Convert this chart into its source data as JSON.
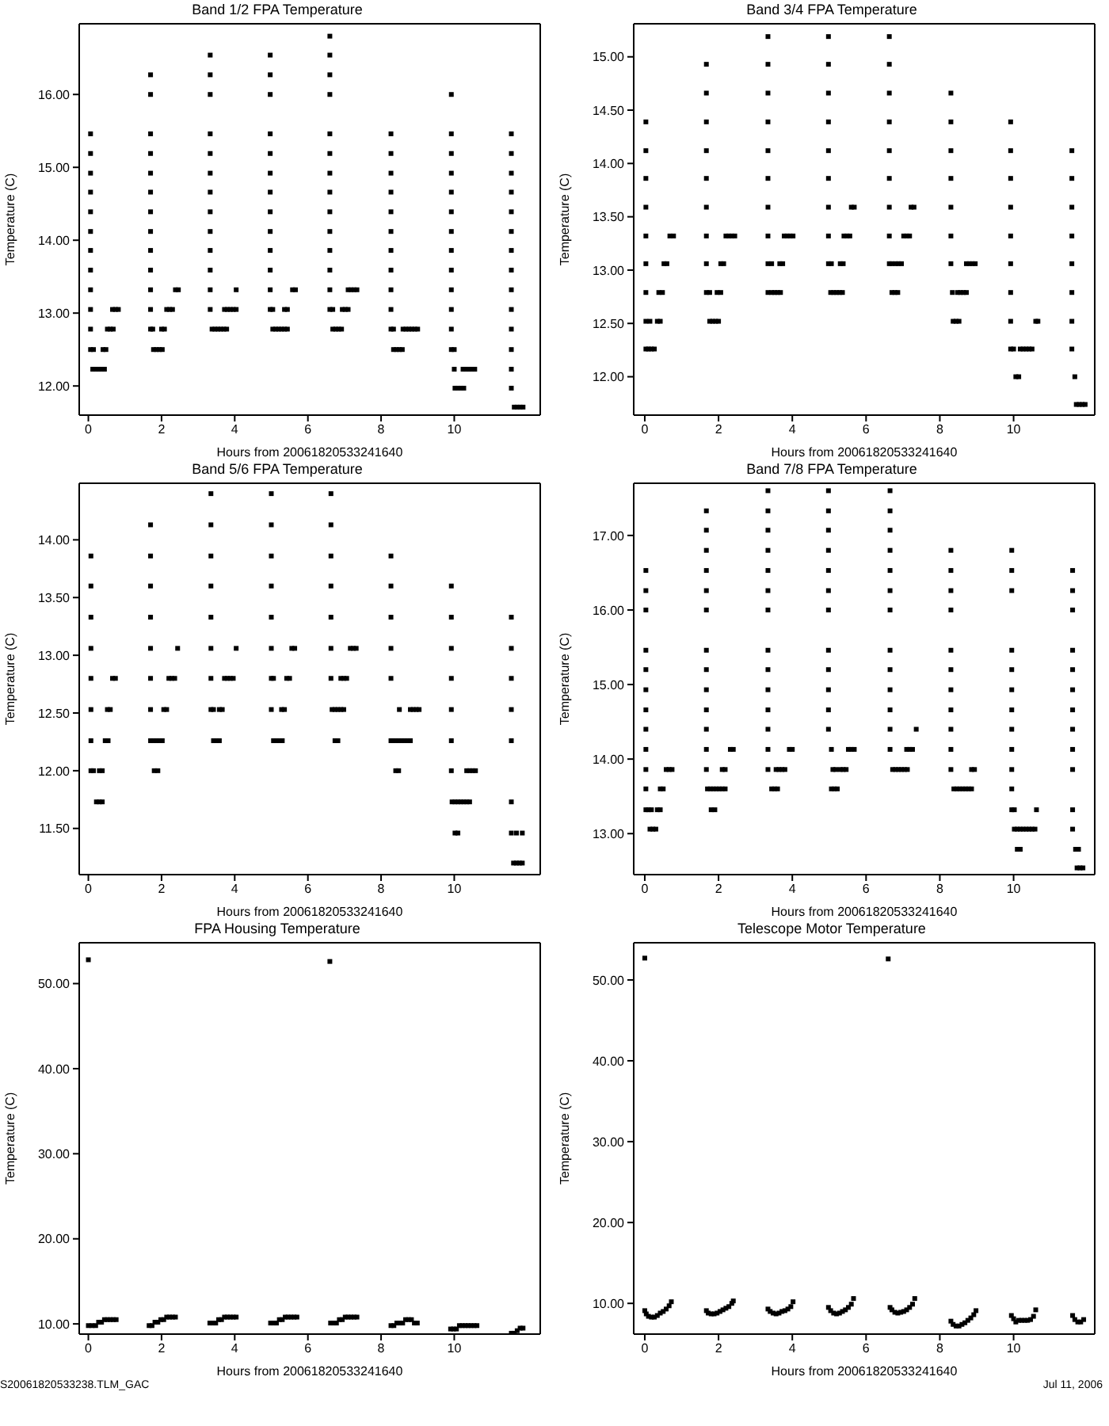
{
  "chart_data": [
    {
      "type": "scatter",
      "title": "Band 1/2 FPA Temperature",
      "xlabel": "Hours from 20061820533241640",
      "ylabel": "Temperature (C)",
      "color": "#000000",
      "marker": "square",
      "xlim": [
        -0.25,
        12.35
      ],
      "xticks": [
        0,
        2,
        4,
        6,
        8,
        10
      ],
      "ylim": [
        11.6,
        16.97
      ],
      "yticks": [
        {
          "value": 12,
          "label": "12.00"
        },
        {
          "value": 13,
          "label": "13.00"
        },
        {
          "value": 14,
          "label": "14.00"
        },
        {
          "value": 15,
          "label": "15.00"
        },
        {
          "value": 16,
          "label": "16.00"
        }
      ],
      "x": [
        0.06,
        0.06,
        0.06,
        0.06,
        0.06,
        0.06,
        0.06,
        0.06,
        0.06,
        0.06,
        0.06,
        0.06,
        0.14,
        0.12,
        0.2,
        0.28,
        0.36,
        0.44,
        0.4,
        0.48,
        0.52,
        0.6,
        0.68,
        0.66,
        0.74,
        0.82,
        1.7,
        1.7,
        1.7,
        1.7,
        1.7,
        1.7,
        1.7,
        1.7,
        1.7,
        1.7,
        1.7,
        1.7,
        1.7,
        1.76,
        1.78,
        1.86,
        1.94,
        2.02,
        2.0,
        2.08,
        2.14,
        2.22,
        2.3,
        2.38,
        2.46,
        3.33,
        3.33,
        3.33,
        3.33,
        3.33,
        3.33,
        3.33,
        3.33,
        3.33,
        3.33,
        3.33,
        3.33,
        3.33,
        3.38,
        3.46,
        3.54,
        3.62,
        3.7,
        3.78,
        3.72,
        3.8,
        3.88,
        3.96,
        4.04,
        4.04,
        4.97,
        4.97,
        4.97,
        4.97,
        4.97,
        4.97,
        4.97,
        4.97,
        4.97,
        4.97,
        4.97,
        4.97,
        4.97,
        5.04,
        5.12,
        5.2,
        5.28,
        5.36,
        5.44,
        5.04,
        5.36,
        5.44,
        5.58,
        5.66,
        6.6,
        6.6,
        6.6,
        6.6,
        6.6,
        6.6,
        6.6,
        6.6,
        6.6,
        6.6,
        6.6,
        6.6,
        6.6,
        6.6,
        6.68,
        6.76,
        6.84,
        6.92,
        6.68,
        6.94,
        7.02,
        7.1,
        7.1,
        7.18,
        7.26,
        7.34,
        8.27,
        8.27,
        8.27,
        8.27,
        8.27,
        8.27,
        8.27,
        8.27,
        8.27,
        8.27,
        8.27,
        8.34,
        8.42,
        8.5,
        8.58,
        8.34,
        8.6,
        8.68,
        8.76,
        8.84,
        8.92,
        9.0,
        9.92,
        9.92,
        9.92,
        9.92,
        9.92,
        9.92,
        9.92,
        9.92,
        9.92,
        9.92,
        9.92,
        9.92,
        9.92,
        10.0,
        10.0,
        10.02,
        10.1,
        10.18,
        10.26,
        10.24,
        10.32,
        10.4,
        10.48,
        10.56,
        11.56,
        11.56,
        11.56,
        11.56,
        11.56,
        11.56,
        11.56,
        11.56,
        11.56,
        11.56,
        11.56,
        11.56,
        11.56,
        11.56,
        11.64,
        11.72,
        11.8,
        11.88
      ],
      "values": [
        15.46,
        15.19,
        14.92,
        14.66,
        14.39,
        14.12,
        13.86,
        13.59,
        13.32,
        13.05,
        12.78,
        12.5,
        12.5,
        12.23,
        12.23,
        12.23,
        12.23,
        12.23,
        12.5,
        12.5,
        12.78,
        12.78,
        12.78,
        13.05,
        13.05,
        13.05,
        16.27,
        16.0,
        15.46,
        15.19,
        14.92,
        14.66,
        14.39,
        14.12,
        13.86,
        13.59,
        13.32,
        13.05,
        12.78,
        12.78,
        12.5,
        12.5,
        12.5,
        12.5,
        12.78,
        12.78,
        13.05,
        13.05,
        13.05,
        13.32,
        13.32,
        16.54,
        16.27,
        16.0,
        15.46,
        15.19,
        14.92,
        14.66,
        14.39,
        14.12,
        13.86,
        13.59,
        13.32,
        13.05,
        12.78,
        12.78,
        12.78,
        12.78,
        12.78,
        12.78,
        13.05,
        13.05,
        13.05,
        13.05,
        13.05,
        13.32,
        16.54,
        16.27,
        16.0,
        15.46,
        15.19,
        14.92,
        14.66,
        14.39,
        14.12,
        13.86,
        13.59,
        13.32,
        13.05,
        12.78,
        12.78,
        12.78,
        12.78,
        12.78,
        12.78,
        13.05,
        13.05,
        13.05,
        13.32,
        13.32,
        16.8,
        16.54,
        16.27,
        16.0,
        15.46,
        15.19,
        14.92,
        14.66,
        14.39,
        14.12,
        13.86,
        13.59,
        13.32,
        13.05,
        12.78,
        12.78,
        12.78,
        12.78,
        13.05,
        13.05,
        13.05,
        13.05,
        13.32,
        13.32,
        13.32,
        13.32,
        15.46,
        15.19,
        14.92,
        14.66,
        14.39,
        14.12,
        13.86,
        13.59,
        13.32,
        13.05,
        12.78,
        12.5,
        12.5,
        12.5,
        12.5,
        12.78,
        12.78,
        12.78,
        12.78,
        12.78,
        12.78,
        12.78,
        16.0,
        15.46,
        15.19,
        14.92,
        14.66,
        14.39,
        14.12,
        13.86,
        13.59,
        13.32,
        13.05,
        12.78,
        12.5,
        12.5,
        12.23,
        11.97,
        11.97,
        11.97,
        11.97,
        12.23,
        12.23,
        12.23,
        12.23,
        12.23,
        15.46,
        15.19,
        14.92,
        14.66,
        14.39,
        14.12,
        13.86,
        13.59,
        13.32,
        13.05,
        12.78,
        12.5,
        12.23,
        11.97,
        11.71,
        11.71,
        11.71,
        11.71
      ]
    },
    {
      "type": "scatter",
      "title": "Band 3/4 FPA Temperature",
      "xlabel": "Hours from 20061820533241640",
      "ylabel": "Temperature (C)",
      "color": "#000000",
      "marker": "square",
      "xlim": [
        -0.3,
        12.2
      ],
      "xticks": [
        0,
        2,
        4,
        6,
        8,
        10
      ],
      "ylim": [
        11.64,
        15.31
      ],
      "yticks": [
        {
          "value": 12,
          "label": "12.00"
        },
        {
          "value": 12.5,
          "label": "12.50"
        },
        {
          "value": 13,
          "label": "13.00"
        },
        {
          "value": 13.5,
          "label": "13.50"
        },
        {
          "value": 14,
          "label": "14.00"
        },
        {
          "value": 14.5,
          "label": "14.50"
        },
        {
          "value": 15,
          "label": "15.00"
        }
      ],
      "x": [
        0.03,
        0.03,
        0.03,
        0.03,
        0.03,
        0.03,
        0.03,
        0.03,
        0.03,
        0.1,
        0.18,
        0.26,
        0.14,
        0.34,
        0.42,
        0.38,
        0.48,
        0.52,
        0.6,
        0.68,
        0.78,
        1.67,
        1.67,
        1.67,
        1.67,
        1.67,
        1.67,
        1.67,
        1.67,
        1.67,
        1.76,
        1.84,
        1.92,
        2.0,
        1.76,
        1.96,
        2.06,
        2.06,
        2.14,
        2.2,
        2.28,
        2.36,
        2.44,
        3.34,
        3.34,
        3.34,
        3.34,
        3.34,
        3.34,
        3.34,
        3.34,
        3.34,
        3.34,
        3.44,
        3.52,
        3.6,
        3.68,
        3.44,
        3.66,
        3.74,
        3.78,
        3.86,
        3.94,
        4.02,
        4.98,
        4.98,
        4.98,
        4.98,
        4.98,
        4.98,
        4.98,
        4.98,
        4.98,
        5.04,
        5.12,
        5.2,
        5.28,
        5.36,
        5.06,
        5.3,
        5.38,
        5.4,
        5.48,
        5.56,
        5.6,
        5.68,
        6.63,
        6.63,
        6.63,
        6.63,
        6.63,
        6.63,
        6.63,
        6.63,
        6.63,
        6.7,
        6.78,
        6.86,
        6.7,
        6.8,
        6.88,
        6.96,
        7.02,
        7.1,
        7.18,
        7.22,
        7.3,
        8.3,
        8.3,
        8.3,
        8.3,
        8.3,
        8.3,
        8.3,
        8.34,
        8.36,
        8.44,
        8.52,
        8.48,
        8.56,
        8.64,
        8.72,
        8.72,
        8.8,
        8.88,
        8.96,
        9.92,
        9.92,
        9.92,
        9.92,
        9.92,
        9.92,
        9.92,
        9.92,
        9.92,
        10.0,
        10.06,
        10.14,
        10.18,
        10.26,
        10.34,
        10.42,
        10.5,
        10.6,
        10.66,
        11.58,
        11.58,
        11.58,
        11.58,
        11.58,
        11.58,
        11.58,
        11.58,
        11.66,
        11.7,
        11.78,
        11.86,
        11.94
      ],
      "values": [
        14.39,
        14.12,
        13.86,
        13.59,
        13.32,
        13.06,
        12.79,
        12.52,
        12.26,
        12.26,
        12.26,
        12.26,
        12.52,
        12.52,
        12.52,
        12.79,
        12.79,
        13.06,
        13.06,
        13.32,
        13.32,
        14.93,
        14.66,
        14.39,
        14.12,
        13.86,
        13.59,
        13.32,
        13.06,
        12.79,
        12.52,
        12.52,
        12.52,
        12.52,
        12.79,
        12.79,
        12.79,
        13.06,
        13.06,
        13.32,
        13.32,
        13.32,
        13.32,
        15.19,
        14.93,
        14.66,
        14.39,
        14.12,
        13.86,
        13.59,
        13.32,
        13.06,
        12.79,
        12.79,
        12.79,
        12.79,
        12.79,
        13.06,
        13.06,
        13.06,
        13.32,
        13.32,
        13.32,
        13.32,
        15.19,
        14.93,
        14.66,
        14.39,
        14.12,
        13.86,
        13.59,
        13.32,
        13.06,
        12.79,
        12.79,
        12.79,
        12.79,
        12.79,
        13.06,
        13.06,
        13.06,
        13.32,
        13.32,
        13.32,
        13.59,
        13.59,
        15.19,
        14.93,
        14.66,
        14.39,
        14.12,
        13.86,
        13.59,
        13.32,
        13.06,
        12.79,
        12.79,
        12.79,
        13.06,
        13.06,
        13.06,
        13.06,
        13.32,
        13.32,
        13.32,
        13.59,
        13.59,
        14.66,
        14.39,
        14.12,
        13.86,
        13.59,
        13.32,
        13.06,
        12.79,
        12.52,
        12.52,
        12.52,
        12.79,
        12.79,
        12.79,
        12.79,
        13.06,
        13.06,
        13.06,
        13.06,
        14.39,
        14.12,
        13.86,
        13.59,
        13.32,
        13.06,
        12.79,
        12.52,
        12.26,
        12.26,
        12.0,
        12.0,
        12.26,
        12.26,
        12.26,
        12.26,
        12.26,
        12.52,
        12.52,
        14.12,
        13.86,
        13.59,
        13.32,
        13.06,
        12.79,
        12.52,
        12.26,
        12.0,
        11.74,
        11.74,
        11.74,
        11.74
      ]
    },
    {
      "type": "scatter",
      "title": "Band 5/6 FPA Temperature",
      "xlabel": "Hours from 20061820533241640",
      "ylabel": "Temperature (C)",
      "color": "#000000",
      "marker": "square",
      "xlim": [
        -0.25,
        12.35
      ],
      "xticks": [
        0,
        2,
        4,
        6,
        8,
        10
      ],
      "ylim": [
        11.1,
        14.49
      ],
      "yticks": [
        {
          "value": 11.5,
          "label": "11.50"
        },
        {
          "value": 12,
          "label": "12.00"
        },
        {
          "value": 12.5,
          "label": "12.50"
        },
        {
          "value": 13,
          "label": "13.00"
        },
        {
          "value": 13.5,
          "label": "13.50"
        },
        {
          "value": 14,
          "label": "14.00"
        }
      ],
      "x": [
        0.07,
        0.07,
        0.07,
        0.07,
        0.07,
        0.07,
        0.07,
        0.07,
        0.14,
        0.22,
        0.3,
        0.38,
        0.3,
        0.38,
        0.46,
        0.54,
        0.52,
        0.6,
        0.66,
        0.74,
        1.7,
        1.7,
        1.7,
        1.7,
        1.7,
        1.7,
        1.7,
        1.7,
        1.78,
        1.86,
        1.94,
        2.02,
        1.8,
        1.9,
        2.06,
        2.14,
        2.2,
        2.28,
        2.36,
        2.44,
        3.35,
        3.35,
        3.35,
        3.35,
        3.35,
        3.35,
        3.35,
        3.35,
        3.42,
        3.5,
        3.58,
        3.42,
        3.58,
        3.66,
        3.72,
        3.8,
        3.88,
        3.96,
        4.04,
        5.0,
        5.0,
        5.0,
        5.0,
        5.0,
        5.0,
        5.0,
        5.0,
        5.06,
        5.14,
        5.22,
        5.3,
        5.28,
        5.36,
        5.42,
        5.5,
        5.56,
        5.64,
        5.06,
        6.63,
        6.63,
        6.63,
        6.63,
        6.63,
        6.63,
        6.63,
        6.66,
        6.74,
        6.82,
        6.9,
        6.98,
        6.74,
        6.82,
        6.9,
        6.98,
        7.06,
        7.16,
        7.24,
        7.32,
        8.27,
        8.27,
        8.27,
        8.27,
        8.27,
        8.27,
        8.32,
        8.4,
        8.48,
        8.56,
        8.64,
        8.72,
        8.8,
        8.4,
        8.48,
        8.5,
        8.8,
        8.88,
        8.96,
        9.04,
        9.92,
        9.92,
        9.92,
        9.92,
        9.92,
        9.92,
        9.92,
        9.94,
        10.02,
        10.1,
        10.18,
        10.26,
        10.34,
        10.42,
        10.02,
        10.1,
        10.34,
        10.42,
        10.5,
        10.58,
        11.56,
        11.56,
        11.56,
        11.56,
        11.56,
        11.56,
        11.56,
        11.7,
        11.86,
        11.62,
        11.7,
        11.78,
        11.86
      ],
      "values": [
        13.86,
        13.6,
        13.33,
        13.06,
        12.8,
        12.53,
        12.26,
        12.0,
        12.0,
        11.73,
        11.73,
        11.73,
        12.0,
        12.0,
        12.26,
        12.26,
        12.53,
        12.53,
        12.8,
        12.8,
        14.13,
        13.86,
        13.6,
        13.33,
        13.06,
        12.8,
        12.53,
        12.26,
        12.26,
        12.26,
        12.26,
        12.26,
        12.0,
        12.0,
        12.53,
        12.53,
        12.8,
        12.8,
        12.8,
        13.06,
        14.4,
        14.13,
        13.86,
        13.6,
        13.33,
        13.06,
        12.8,
        12.53,
        12.26,
        12.26,
        12.26,
        12.53,
        12.53,
        12.53,
        12.8,
        12.8,
        12.8,
        12.8,
        13.06,
        14.4,
        14.13,
        13.86,
        13.6,
        13.33,
        13.06,
        12.8,
        12.53,
        12.26,
        12.26,
        12.26,
        12.26,
        12.53,
        12.53,
        12.8,
        12.8,
        13.06,
        13.06,
        12.8,
        14.4,
        14.13,
        13.86,
        13.6,
        13.33,
        13.06,
        12.8,
        12.53,
        12.53,
        12.53,
        12.53,
        12.53,
        12.26,
        12.26,
        12.8,
        12.8,
        12.8,
        13.06,
        13.06,
        13.06,
        13.86,
        13.6,
        13.33,
        13.06,
        12.8,
        12.26,
        12.26,
        12.26,
        12.26,
        12.26,
        12.26,
        12.26,
        12.26,
        12.0,
        12.0,
        12.53,
        12.53,
        12.53,
        12.53,
        12.53,
        13.6,
        13.33,
        13.06,
        12.8,
        12.53,
        12.26,
        12.0,
        11.73,
        11.73,
        11.73,
        11.73,
        11.73,
        11.73,
        11.73,
        11.46,
        11.46,
        12.0,
        12.0,
        12.0,
        12.0,
        13.33,
        13.06,
        12.8,
        12.53,
        12.26,
        11.73,
        11.46,
        11.46,
        11.46,
        11.2,
        11.2,
        11.2,
        11.2
      ]
    },
    {
      "type": "scatter",
      "title": "Band 7/8 FPA Temperature",
      "xlabel": "Hours from 20061820533241640",
      "ylabel": "Temperature (C)",
      "color": "#000000",
      "marker": "square",
      "xlim": [
        -0.3,
        12.2
      ],
      "xticks": [
        0,
        2,
        4,
        6,
        8,
        10
      ],
      "ylim": [
        12.45,
        17.7
      ],
      "yticks": [
        {
          "value": 13,
          "label": "13.00"
        },
        {
          "value": 14,
          "label": "14.00"
        },
        {
          "value": 15,
          "label": "15.00"
        },
        {
          "value": 16,
          "label": "16.00"
        },
        {
          "value": 17,
          "label": "17.00"
        }
      ],
      "x": [
        0.03,
        0.03,
        0.03,
        0.03,
        0.03,
        0.03,
        0.03,
        0.03,
        0.03,
        0.03,
        0.03,
        0.03,
        0.1,
        0.18,
        0.34,
        0.42,
        0.14,
        0.22,
        0.3,
        0.42,
        0.5,
        0.58,
        0.66,
        0.74,
        1.67,
        1.67,
        1.67,
        1.67,
        1.67,
        1.67,
        1.67,
        1.67,
        1.67,
        1.67,
        1.67,
        1.67,
        1.67,
        1.7,
        1.78,
        1.86,
        1.94,
        2.02,
        2.1,
        2.18,
        1.8,
        1.9,
        2.1,
        2.18,
        2.32,
        2.4,
        3.34,
        3.34,
        3.34,
        3.34,
        3.34,
        3.34,
        3.34,
        3.34,
        3.34,
        3.34,
        3.34,
        3.34,
        3.34,
        3.34,
        3.44,
        3.52,
        3.6,
        3.56,
        3.64,
        3.72,
        3.8,
        3.92,
        4.0,
        4.98,
        4.98,
        4.98,
        4.98,
        4.98,
        4.98,
        4.98,
        4.98,
        4.98,
        4.98,
        4.98,
        4.98,
        5.06,
        5.1,
        5.18,
        5.06,
        5.14,
        5.22,
        5.3,
        5.38,
        5.46,
        5.52,
        5.6,
        5.68,
        6.65,
        6.65,
        6.65,
        6.65,
        6.65,
        6.65,
        6.65,
        6.65,
        6.65,
        6.65,
        6.65,
        6.65,
        6.65,
        6.72,
        6.8,
        6.88,
        6.96,
        7.04,
        7.12,
        7.1,
        7.18,
        7.26,
        7.36,
        8.3,
        8.3,
        8.3,
        8.3,
        8.3,
        8.3,
        8.3,
        8.3,
        8.3,
        8.3,
        8.3,
        8.38,
        8.46,
        8.54,
        8.62,
        8.7,
        8.78,
        8.86,
        8.86,
        8.94,
        9.95,
        9.95,
        9.95,
        9.95,
        9.95,
        9.95,
        9.95,
        9.95,
        9.95,
        9.95,
        9.95,
        9.95,
        10.02,
        10.02,
        10.1,
        10.18,
        10.26,
        10.34,
        10.42,
        10.5,
        10.58,
        10.1,
        10.18,
        10.62,
        11.6,
        11.6,
        11.6,
        11.6,
        11.6,
        11.6,
        11.6,
        11.6,
        11.6,
        11.6,
        11.6,
        11.6,
        11.68,
        11.76,
        11.72,
        11.8,
        11.88
      ],
      "values": [
        16.53,
        16.26,
        16.0,
        15.46,
        15.2,
        14.93,
        14.66,
        14.4,
        14.13,
        13.86,
        13.6,
        13.32,
        13.32,
        13.32,
        13.32,
        13.32,
        13.06,
        13.06,
        13.06,
        13.6,
        13.6,
        13.86,
        13.86,
        13.86,
        17.33,
        17.07,
        16.8,
        16.53,
        16.26,
        16.0,
        15.46,
        15.2,
        14.93,
        14.66,
        14.4,
        14.13,
        13.86,
        13.6,
        13.6,
        13.6,
        13.6,
        13.6,
        13.6,
        13.6,
        13.32,
        13.32,
        13.86,
        13.86,
        14.13,
        14.13,
        17.6,
        17.33,
        17.07,
        16.8,
        16.53,
        16.26,
        16.0,
        15.46,
        15.2,
        14.93,
        14.66,
        14.4,
        14.13,
        13.86,
        13.6,
        13.6,
        13.6,
        13.86,
        13.86,
        13.86,
        13.86,
        14.13,
        14.13,
        17.6,
        17.33,
        17.07,
        16.8,
        16.53,
        16.26,
        16.0,
        15.46,
        15.2,
        14.93,
        14.66,
        14.4,
        14.13,
        13.86,
        13.86,
        13.6,
        13.6,
        13.6,
        13.86,
        13.86,
        13.86,
        14.13,
        14.13,
        14.13,
        17.6,
        17.33,
        17.07,
        16.8,
        16.53,
        16.26,
        16.0,
        15.46,
        15.2,
        14.93,
        14.66,
        14.4,
        14.13,
        13.86,
        13.86,
        13.86,
        13.86,
        13.86,
        13.86,
        14.13,
        14.13,
        14.13,
        14.4,
        16.8,
        16.53,
        16.26,
        16.0,
        15.46,
        15.2,
        14.93,
        14.66,
        14.4,
        14.13,
        13.86,
        13.6,
        13.6,
        13.6,
        13.6,
        13.6,
        13.6,
        13.6,
        13.86,
        13.86,
        16.8,
        16.53,
        16.26,
        15.46,
        15.2,
        14.93,
        14.66,
        14.4,
        14.13,
        13.86,
        13.6,
        13.32,
        13.32,
        13.06,
        13.06,
        13.06,
        13.06,
        13.06,
        13.06,
        13.06,
        13.06,
        12.79,
        12.79,
        13.32,
        16.53,
        16.26,
        16.0,
        15.46,
        15.2,
        14.93,
        14.66,
        14.4,
        14.13,
        13.86,
        13.32,
        13.06,
        12.79,
        12.79,
        12.54,
        12.54,
        12.54
      ]
    },
    {
      "type": "scatter",
      "title": "FPA Housing Temperature",
      "xlabel": "Hours from 20061820533241640",
      "ylabel": "Temperature (C)",
      "color": "#000000",
      "marker": "square",
      "xlim": [
        -0.25,
        12.35
      ],
      "xticks": [
        0,
        2,
        4,
        6,
        8,
        10
      ],
      "ylim": [
        8.8,
        54.8
      ],
      "yticks": [
        {
          "value": 10,
          "label": "10.00"
        },
        {
          "value": 20,
          "label": "20.00"
        },
        {
          "value": 30,
          "label": "30.00"
        },
        {
          "value": 40,
          "label": "40.00"
        },
        {
          "value": 50,
          "label": "50.00"
        }
      ],
      "x": [
        0.0,
        6.6,
        0.0,
        0.1,
        0.2,
        0.28,
        0.36,
        0.44,
        0.52,
        0.6,
        0.68,
        0.76,
        1.66,
        1.74,
        1.82,
        1.9,
        1.98,
        2.06,
        2.14,
        2.22,
        2.3,
        2.38,
        3.32,
        3.4,
        3.48,
        3.56,
        3.64,
        3.72,
        3.8,
        3.88,
        3.96,
        4.04,
        4.98,
        5.06,
        5.14,
        5.22,
        5.3,
        5.38,
        5.46,
        5.54,
        5.62,
        5.7,
        6.62,
        6.7,
        6.78,
        6.86,
        6.94,
        7.02,
        7.1,
        7.18,
        7.26,
        7.34,
        8.27,
        8.35,
        8.43,
        8.51,
        8.59,
        8.67,
        8.75,
        8.83,
        8.91,
        8.99,
        9.9,
        9.98,
        10.06,
        10.14,
        10.22,
        10.3,
        10.38,
        10.46,
        10.54,
        10.62,
        11.56,
        11.64,
        11.72,
        11.8,
        11.88
      ],
      "values": [
        52.8,
        52.6,
        9.8,
        9.8,
        9.8,
        10.2,
        10.2,
        10.5,
        10.5,
        10.5,
        10.5,
        10.5,
        9.8,
        9.8,
        10.2,
        10.2,
        10.5,
        10.5,
        10.8,
        10.8,
        10.8,
        10.8,
        10.1,
        10.1,
        10.1,
        10.5,
        10.5,
        10.8,
        10.8,
        10.8,
        10.8,
        10.8,
        10.1,
        10.1,
        10.1,
        10.5,
        10.5,
        10.8,
        10.8,
        10.8,
        10.8,
        10.8,
        10.1,
        10.1,
        10.1,
        10.5,
        10.5,
        10.8,
        10.8,
        10.8,
        10.8,
        10.8,
        9.8,
        9.8,
        10.1,
        10.1,
        10.1,
        10.5,
        10.5,
        10.5,
        10.1,
        10.1,
        9.4,
        9.4,
        9.4,
        9.8,
        9.8,
        9.8,
        9.8,
        9.8,
        9.8,
        9.8,
        8.9,
        8.9,
        9.2,
        9.5,
        9.5
      ],
      "annotations": [
        "S20061820533238.TLM_GAC"
      ]
    },
    {
      "type": "scatter",
      "title": "Telescope Motor Temperature",
      "xlabel": "Hours from 20061820533241640",
      "ylabel": "Temperature (C)",
      "color": "#000000",
      "marker": "square",
      "xlim": [
        -0.3,
        12.2
      ],
      "xticks": [
        0,
        2,
        4,
        6,
        8,
        10
      ],
      "ylim": [
        6.2,
        54.6
      ],
      "yticks": [
        {
          "value": 10,
          "label": "10.00"
        },
        {
          "value": 20,
          "label": "20.00"
        },
        {
          "value": 30,
          "label": "30.00"
        },
        {
          "value": 40,
          "label": "40.00"
        },
        {
          "value": 50,
          "label": "50.00"
        }
      ],
      "x": [
        0.0,
        6.6,
        0.0,
        0.04,
        0.1,
        0.18,
        0.26,
        0.34,
        0.42,
        0.5,
        0.58,
        0.66,
        0.72,
        1.67,
        1.72,
        1.8,
        1.88,
        1.96,
        2.04,
        2.12,
        2.2,
        2.28,
        2.36,
        2.4,
        3.34,
        3.4,
        3.48,
        3.56,
        3.64,
        3.72,
        3.8,
        3.88,
        3.96,
        4.02,
        4.98,
        5.04,
        5.12,
        5.2,
        5.28,
        5.36,
        5.44,
        5.52,
        5.6,
        5.66,
        6.65,
        6.7,
        6.78,
        6.86,
        6.94,
        7.02,
        7.1,
        7.18,
        7.26,
        7.32,
        8.3,
        8.36,
        8.44,
        8.52,
        8.6,
        8.68,
        8.76,
        8.84,
        8.92,
        8.98,
        9.94,
        10.0,
        10.06,
        10.14,
        10.22,
        10.3,
        10.38,
        10.46,
        10.54,
        10.6,
        11.6,
        11.66,
        11.74,
        11.82,
        11.9
      ],
      "values": [
        52.7,
        52.6,
        9.1,
        8.7,
        8.4,
        8.3,
        8.3,
        8.5,
        8.8,
        9.0,
        9.3,
        9.7,
        10.2,
        9.1,
        8.8,
        8.7,
        8.7,
        8.8,
        9.0,
        9.2,
        9.4,
        9.6,
        10.0,
        10.3,
        9.3,
        9.0,
        8.8,
        8.7,
        8.8,
        9.0,
        9.1,
        9.3,
        9.6,
        10.2,
        9.5,
        9.1,
        8.8,
        8.7,
        8.8,
        9.0,
        9.2,
        9.5,
        9.9,
        10.6,
        9.5,
        9.2,
        8.9,
        8.8,
        8.9,
        9.0,
        9.2,
        9.5,
        9.9,
        10.6,
        7.8,
        7.4,
        7.2,
        7.2,
        7.4,
        7.6,
        7.9,
        8.2,
        8.6,
        9.1,
        8.5,
        8.1,
        7.7,
        7.9,
        7.9,
        7.9,
        7.9,
        8.0,
        8.4,
        9.2,
        8.5,
        8.0,
        7.7,
        7.7,
        8.0
      ],
      "annotations": [
        "Jul 11, 2006"
      ]
    }
  ]
}
